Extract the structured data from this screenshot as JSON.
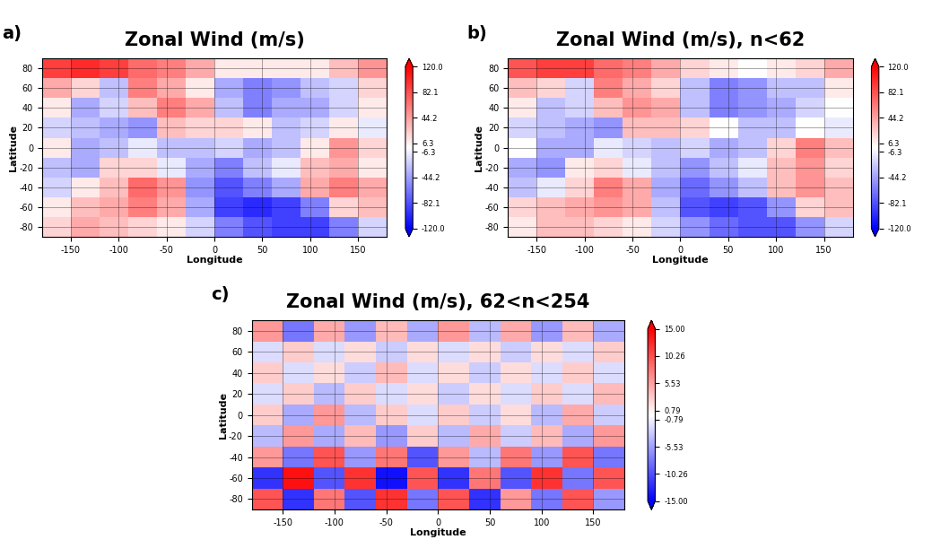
{
  "chart_data": [
    {
      "type": "heatmap",
      "panel_label": "a)",
      "title": "Zonal Wind (m/s)",
      "x_label": "Longitude",
      "y_label": "Latitude",
      "xlim": [
        -180,
        180
      ],
      "ylim": [
        -90,
        90
      ],
      "xticks": [
        -150,
        -100,
        -50,
        0,
        50,
        100,
        150
      ],
      "yticks": [
        -80,
        -60,
        -40,
        -20,
        0,
        20,
        40,
        60,
        80
      ],
      "grid": true,
      "lon_edges": [
        -180,
        -150,
        -120,
        -90,
        -60,
        -30,
        0,
        30,
        60,
        90,
        120,
        150,
        180
      ],
      "lat_edges": [
        -90,
        -70,
        -50,
        -30,
        -10,
        10,
        30,
        50,
        70,
        90
      ],
      "cells": [
        [
          20,
          40,
          30,
          20,
          10,
          -20,
          -60,
          -80,
          -90,
          -90,
          -60,
          -20
        ],
        [
          10,
          30,
          40,
          60,
          40,
          -40,
          -90,
          -100,
          -90,
          -60,
          20,
          30
        ],
        [
          -20,
          10,
          30,
          70,
          50,
          -50,
          -80,
          -60,
          -40,
          40,
          60,
          40
        ],
        [
          -30,
          -40,
          20,
          20,
          -10,
          -40,
          -60,
          -30,
          -10,
          30,
          40,
          10
        ],
        [
          10,
          -40,
          -30,
          -10,
          -30,
          -30,
          -20,
          -40,
          -30,
          10,
          50,
          20
        ],
        [
          -20,
          -30,
          -40,
          -50,
          30,
          20,
          20,
          10,
          -30,
          -20,
          10,
          -10
        ],
        [
          10,
          -40,
          -20,
          30,
          60,
          40,
          -30,
          -60,
          -40,
          -40,
          -20,
          10
        ],
        [
          40,
          20,
          -30,
          60,
          40,
          10,
          -40,
          -60,
          -50,
          -30,
          -20,
          20
        ],
        [
          90,
          100,
          90,
          70,
          60,
          40,
          10,
          10,
          10,
          10,
          30,
          50
        ]
      ],
      "colorbar": {
        "range": [
          -120,
          120
        ],
        "ticks": [
          -120.0,
          -82.1,
          -44.2,
          -6.3,
          6.3,
          44.2,
          82.1,
          120.0
        ]
      }
    },
    {
      "type": "heatmap",
      "panel_label": "b)",
      "title": "Zonal Wind (m/s), n<62",
      "x_label": "Longitude",
      "y_label": "Latitude",
      "xlim": [
        -180,
        180
      ],
      "ylim": [
        -90,
        90
      ],
      "xticks": [
        -150,
        -100,
        -50,
        0,
        50,
        100,
        150
      ],
      "yticks": [
        -80,
        -60,
        -40,
        -20,
        0,
        20,
        40,
        60,
        80
      ],
      "grid": true,
      "lon_edges": [
        -180,
        -150,
        -120,
        -90,
        -60,
        -30,
        0,
        30,
        60,
        90,
        120,
        150,
        180
      ],
      "lat_edges": [
        -90,
        -70,
        -50,
        -30,
        -10,
        10,
        30,
        50,
        70,
        90
      ],
      "cells": [
        [
          10,
          30,
          30,
          20,
          10,
          -20,
          -50,
          -70,
          -80,
          -80,
          -50,
          -20
        ],
        [
          20,
          30,
          40,
          50,
          40,
          -30,
          -80,
          -90,
          -80,
          -50,
          20,
          30
        ],
        [
          -30,
          -10,
          20,
          60,
          40,
          -40,
          -70,
          -50,
          -30,
          30,
          50,
          30
        ],
        [
          -40,
          -50,
          10,
          20,
          -10,
          -30,
          -50,
          -30,
          -10,
          30,
          50,
          20
        ],
        [
          0,
          -40,
          -40,
          -10,
          -20,
          -30,
          -20,
          -40,
          -30,
          20,
          60,
          30
        ],
        [
          -20,
          -30,
          -40,
          -50,
          30,
          30,
          20,
          0,
          -30,
          -30,
          0,
          -10
        ],
        [
          10,
          -30,
          -20,
          30,
          50,
          40,
          -30,
          -60,
          -50,
          -40,
          -20,
          0
        ],
        [
          30,
          20,
          -20,
          60,
          40,
          20,
          -30,
          -60,
          -50,
          -30,
          -30,
          10
        ],
        [
          80,
          90,
          90,
          70,
          60,
          40,
          20,
          10,
          0,
          10,
          20,
          40
        ]
      ],
      "colorbar": {
        "range": [
          -120,
          120
        ],
        "ticks": [
          -120.0,
          -82.1,
          -44.2,
          -6.3,
          6.3,
          44.2,
          82.1,
          120.0
        ]
      }
    },
    {
      "type": "heatmap",
      "panel_label": "c)",
      "title": "Zonal Wind (m/s), 62<n<254",
      "x_label": "Longitude",
      "y_label": "Latitude",
      "xlim": [
        -180,
        180
      ],
      "ylim": [
        -90,
        90
      ],
      "xticks": [
        -150,
        -100,
        -50,
        0,
        50,
        100,
        150
      ],
      "yticks": [
        -80,
        -60,
        -40,
        -20,
        0,
        20,
        40,
        60,
        80
      ],
      "grid": true,
      "lon_edges": [
        -180,
        -150,
        -120,
        -90,
        -60,
        -30,
        0,
        30,
        60,
        90,
        120,
        150,
        180
      ],
      "lat_edges": [
        -90,
        -70,
        -50,
        -30,
        -10,
        10,
        30,
        50,
        70,
        90
      ],
      "cells": [
        [
          10,
          -12,
          8,
          -10,
          12,
          -8,
          10,
          -12,
          6,
          -8,
          10,
          -6
        ],
        [
          -12,
          14,
          -10,
          12,
          -14,
          10,
          -12,
          8,
          -10,
          12,
          -8,
          10
        ],
        [
          6,
          -8,
          10,
          -6,
          8,
          -10,
          6,
          -4,
          8,
          -6,
          10,
          -8
        ],
        [
          -4,
          6,
          -5,
          4,
          -6,
          3,
          -4,
          5,
          -3,
          4,
          -5,
          6
        ],
        [
          3,
          -5,
          6,
          -4,
          3,
          -2,
          3,
          -3,
          2,
          -4,
          5,
          -3
        ],
        [
          -2,
          3,
          -4,
          3,
          -2,
          2,
          -3,
          2,
          -2,
          3,
          -2,
          4
        ],
        [
          3,
          -2,
          2,
          -3,
          4,
          -2,
          2,
          -3,
          2,
          -2,
          3,
          -2
        ],
        [
          -2,
          3,
          -2,
          2,
          -3,
          2,
          -2,
          2,
          -3,
          2,
          -2,
          3
        ],
        [
          6,
          -8,
          5,
          -6,
          4,
          -5,
          6,
          -4,
          5,
          -6,
          4,
          -5
        ]
      ],
      "colorbar": {
        "range": [
          -15,
          15
        ],
        "ticks": [
          {
            "value": -15,
            "label": "-15.00"
          },
          {
            "value": -10.26,
            "label": "-10.26"
          },
          {
            "value": -5.53,
            "label": "-5.53"
          },
          {
            "value": -0.79,
            "label": "-0.79"
          },
          {
            "value": 0.79,
            "label": "0.79"
          },
          {
            "value": 5.53,
            "label": "5.53"
          },
          {
            "value": 10.26,
            "label": "10.26"
          },
          {
            "value": 15,
            "label": "15.00"
          }
        ]
      }
    }
  ]
}
